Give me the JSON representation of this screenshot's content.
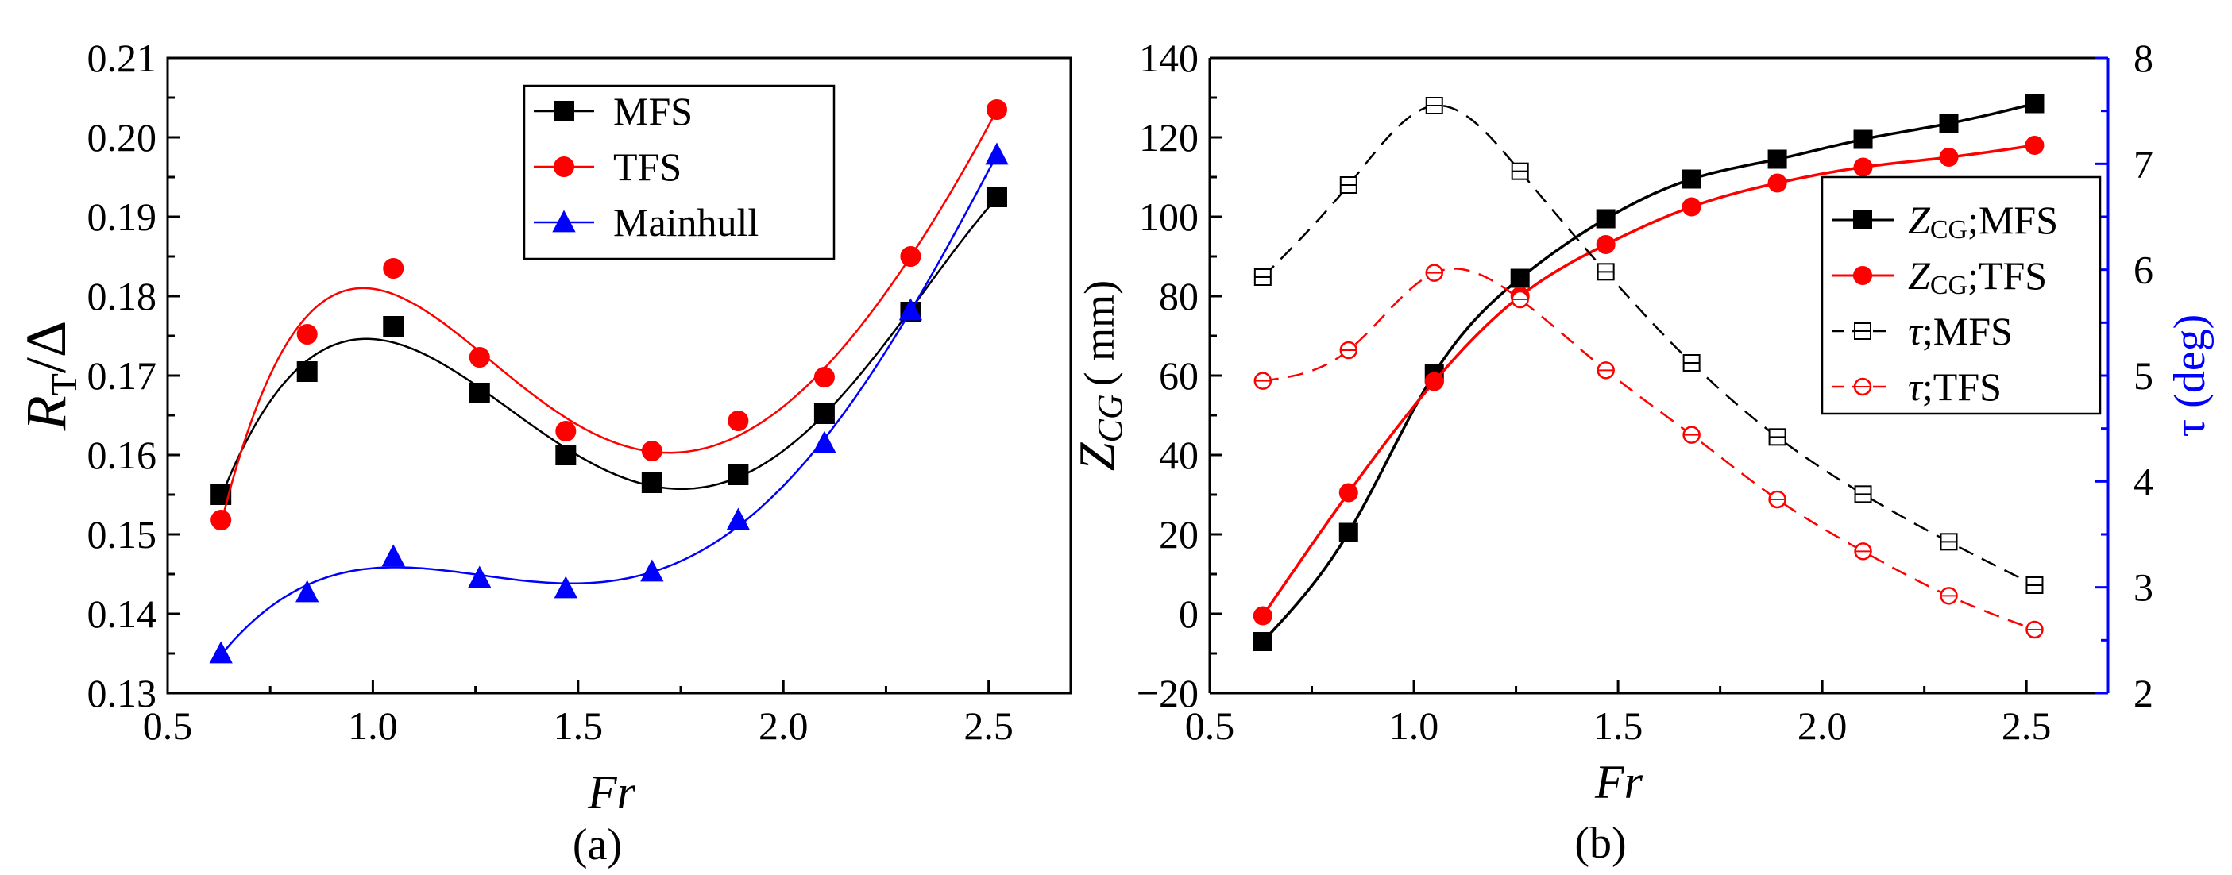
{
  "chart_data": [
    {
      "id": "a",
      "type": "scatter",
      "caption": "(a)",
      "xlabel": "Fr",
      "ylabel_main": "R",
      "ylabel_sub": "T",
      "ylabel_tail": "/Δ",
      "xlim": [
        0.5,
        2.7
      ],
      "ylim": [
        0.13,
        0.21
      ],
      "xticks": [
        "0.5",
        "1.0",
        "1.5",
        "2.0",
        "2.5"
      ],
      "xtick_values": [
        0.5,
        1.0,
        1.5,
        2.0,
        2.5
      ],
      "yticks": [
        "0.13",
        "0.14",
        "0.15",
        "0.16",
        "0.17",
        "0.18",
        "0.19",
        "0.20",
        "0.21"
      ],
      "ytick_values": [
        0.13,
        0.14,
        0.15,
        0.16,
        0.17,
        0.18,
        0.19,
        0.2,
        0.21
      ],
      "x": [
        0.63,
        0.84,
        1.05,
        1.26,
        1.47,
        1.68,
        1.89,
        2.1,
        2.31,
        2.52
      ],
      "series": [
        {
          "name": "MFS",
          "color": "#000000",
          "marker": "square",
          "filled": true,
          "dashed": false,
          "values": [
            0.155,
            0.1705,
            0.1762,
            0.1678,
            0.16,
            0.1565,
            0.1575,
            0.1652,
            0.178,
            0.1925
          ]
        },
        {
          "name": "TFS",
          "color": "#ff0000",
          "marker": "circle",
          "filled": true,
          "dashed": false,
          "values": [
            0.1518,
            0.1752,
            0.1835,
            0.1723,
            0.163,
            0.1605,
            0.1643,
            0.1698,
            0.185,
            0.2035
          ]
        },
        {
          "name": "Mainhull",
          "color": "#0000ff",
          "marker": "triangle",
          "filled": true,
          "dashed": false,
          "values": [
            0.135,
            0.1427,
            0.1472,
            0.1445,
            0.1432,
            0.1453,
            0.1518,
            0.1615,
            0.1782,
            0.1978
          ]
        }
      ],
      "legend": [
        "MFS",
        "TFS",
        "Mainhull"
      ],
      "legend_position": "top-center"
    },
    {
      "id": "b",
      "type": "line",
      "caption": "(b)",
      "xlabel": "Fr",
      "ylabel_left_main": "Z",
      "ylabel_left_sub": "CG",
      "ylabel_left_unit": "( mm)",
      "ylabel_right": "τ (deg)",
      "right_axis_color": "#0000ff",
      "xlim": [
        0.5,
        2.7
      ],
      "ylim_left": [
        -20,
        140
      ],
      "ylim_right": [
        2,
        8
      ],
      "xticks": [
        "0.5",
        "1.0",
        "1.5",
        "2.0",
        "2.5"
      ],
      "xtick_values": [
        0.5,
        1.0,
        1.5,
        2.0,
        2.5
      ],
      "yticks_left": [
        "−20",
        "0",
        "20",
        "40",
        "60",
        "80",
        "100",
        "120",
        "140"
      ],
      "ytick_left_values": [
        -20,
        0,
        20,
        40,
        60,
        80,
        100,
        120,
        140
      ],
      "yticks_right": [
        "2",
        "3",
        "4",
        "5",
        "6",
        "7",
        "8"
      ],
      "ytick_right_values": [
        2,
        3,
        4,
        5,
        6,
        7,
        8
      ],
      "x": [
        0.63,
        0.84,
        1.05,
        1.26,
        1.47,
        1.68,
        1.89,
        2.1,
        2.31,
        2.52
      ],
      "series": [
        {
          "name": "Z",
          "label_main": "Z",
          "label_sub": "CG",
          "label_tail": ";MFS",
          "axis": "left",
          "color": "#000000",
          "marker": "square",
          "filled": true,
          "dashed": false,
          "values": [
            -7,
            20.5,
            60.5,
            84.5,
            99.5,
            109.5,
            114.5,
            119.5,
            123.5,
            128.5
          ]
        },
        {
          "name": "Z",
          "label_main": "Z",
          "label_sub": "CG",
          "label_tail": ";TFS",
          "axis": "left",
          "color": "#ff0000",
          "marker": "circle",
          "filled": true,
          "dashed": false,
          "values": [
            -0.5,
            30.5,
            58.5,
            80,
            93,
            102.5,
            108.5,
            112.5,
            115,
            118
          ]
        },
        {
          "name": "τ;MFS",
          "label_main": "τ",
          "label_sub": "",
          "label_tail": ";MFS",
          "axis": "right",
          "color": "#000000",
          "marker": "square",
          "filled": false,
          "dashed": true,
          "values": [
            5.93,
            6.8,
            7.55,
            6.93,
            5.98,
            5.12,
            4.42,
            3.88,
            3.43,
            3.02
          ]
        },
        {
          "name": "τ;TFS",
          "label_main": "τ",
          "label_sub": "",
          "label_tail": ";TFS",
          "axis": "right",
          "color": "#ff0000",
          "marker": "circle",
          "filled": false,
          "dashed": true,
          "values": [
            4.95,
            5.24,
            5.97,
            5.72,
            5.05,
            4.44,
            3.83,
            3.34,
            2.92,
            2.6
          ]
        }
      ],
      "legend_position": "right-middle"
    }
  ]
}
